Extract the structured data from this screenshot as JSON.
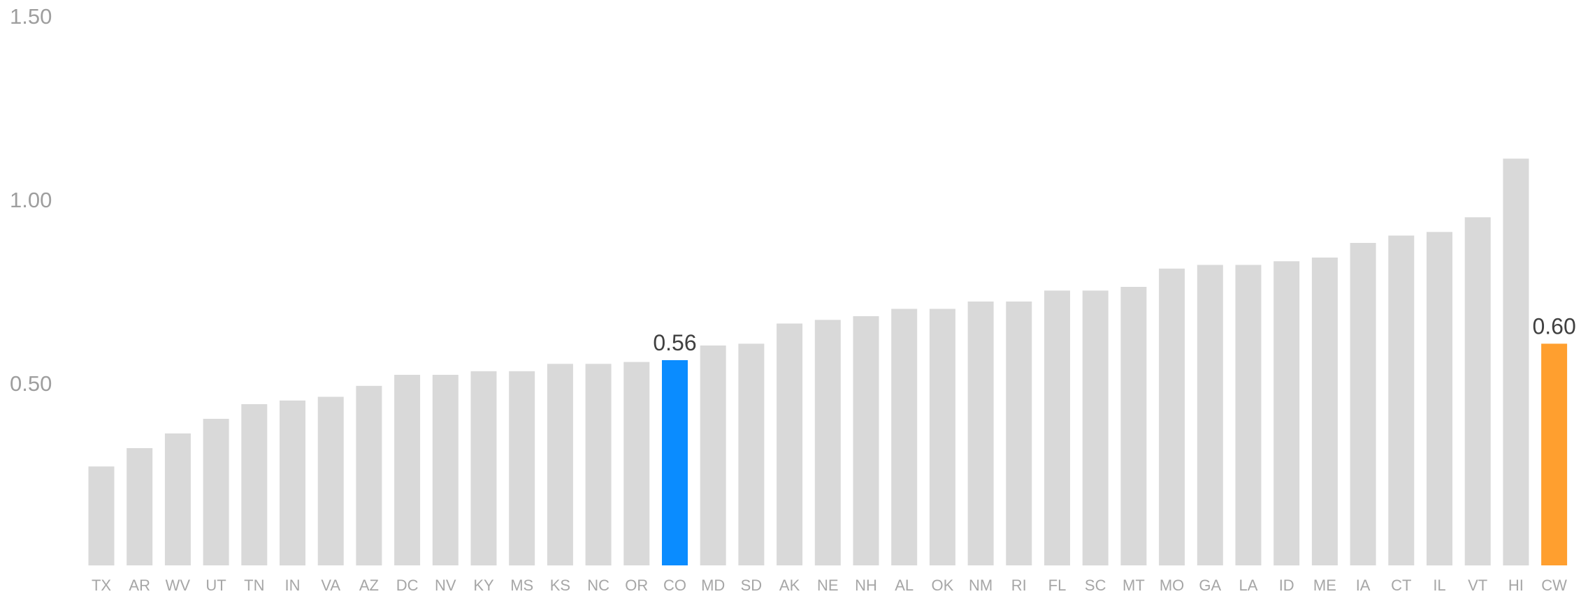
{
  "chart_data": {
    "type": "bar",
    "title": "",
    "xlabel": "",
    "ylabel": "",
    "ylim": [
      0,
      1.5
    ],
    "yticks": [
      "0.50",
      "1.00",
      "1.50"
    ],
    "grid": false,
    "legend": "none",
    "categories": [
      "TX",
      "AR",
      "WV",
      "UT",
      "TN",
      "IN",
      "VA",
      "AZ",
      "DC",
      "NV",
      "KY",
      "MS",
      "KS",
      "NC",
      "OR",
      "CO",
      "MD",
      "SD",
      "AK",
      "NE",
      "NH",
      "AL",
      "OK",
      "NM",
      "RI",
      "FL",
      "SC",
      "MT",
      "MO",
      "GA",
      "LA",
      "ID",
      "ME",
      "IA",
      "CT",
      "IL",
      "VT",
      "HI",
      "CW"
    ],
    "values": [
      0.27,
      0.32,
      0.36,
      0.4,
      0.44,
      0.45,
      0.46,
      0.49,
      0.52,
      0.52,
      0.53,
      0.53,
      0.55,
      0.55,
      0.555,
      0.56,
      0.6,
      0.605,
      0.66,
      0.67,
      0.68,
      0.7,
      0.7,
      0.72,
      0.72,
      0.75,
      0.75,
      0.76,
      0.81,
      0.82,
      0.82,
      0.83,
      0.84,
      0.88,
      0.9,
      0.91,
      0.95,
      1.11,
      0.605
    ],
    "highlights": [
      {
        "category": "CO",
        "label": "0.56",
        "color": "#0a8cff"
      },
      {
        "category": "CW",
        "label": "0.60",
        "color": "#ff9f2f"
      }
    ],
    "colors": {
      "default_bar": "#d9d9d9",
      "tick_text": "#a6a6a6"
    }
  }
}
